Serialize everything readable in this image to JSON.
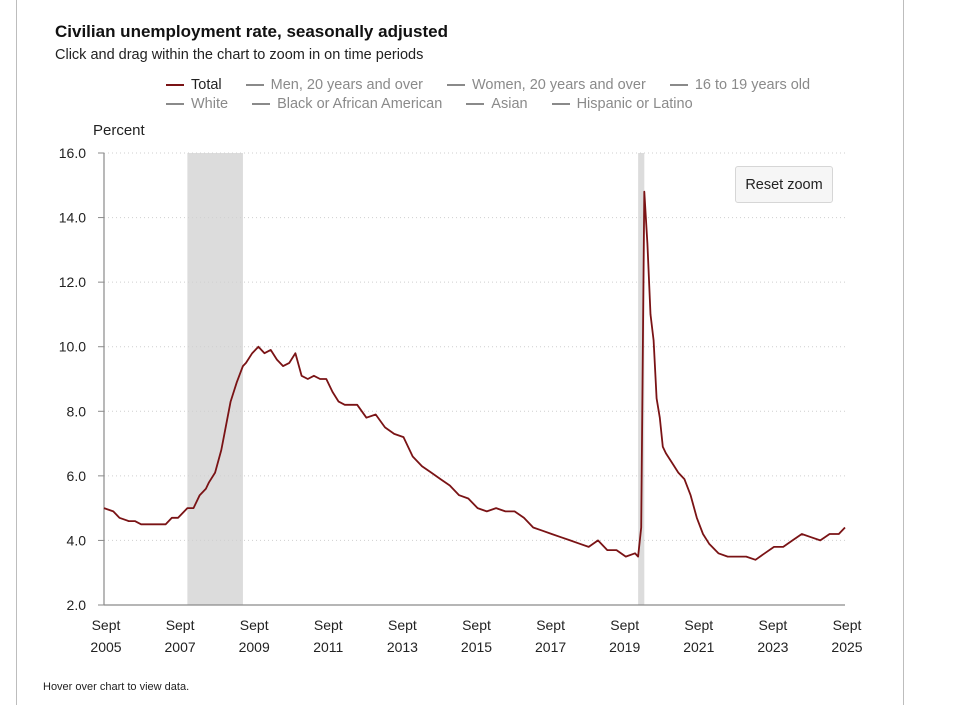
{
  "title": "Civilian unemployment rate, seasonally adjusted",
  "subtitle": "Click and drag within the chart to zoom in on time periods",
  "reset_label": "Reset zoom",
  "footer": "Hover over chart to view data.",
  "colors": {
    "total": "#7a1315",
    "inactive": "#8a8a8a",
    "recession": "#dcdcdc",
    "grid": "#cfcfcf",
    "axis": "#8a8a8a"
  },
  "legend": [
    [
      {
        "label": "Total",
        "active": true
      },
      {
        "label": "Men, 20 years and over",
        "active": false
      },
      {
        "label": "Women, 20 years and over",
        "active": false
      },
      {
        "label": "16 to 19 years old",
        "active": false
      }
    ],
    [
      {
        "label": "White",
        "active": false
      },
      {
        "label": "Black or African American",
        "active": false
      },
      {
        "label": "Asian",
        "active": false
      },
      {
        "label": "Hispanic or Latino",
        "active": false
      }
    ]
  ],
  "chart_data": {
    "type": "line",
    "title": "Civilian unemployment rate, seasonally adjusted",
    "ylabel": "Percent",
    "xlabel": "",
    "ylim": [
      2.0,
      16.0
    ],
    "yticks": [
      "2.0",
      "4.0",
      "6.0",
      "8.0",
      "10.0",
      "12.0",
      "14.0",
      "16.0"
    ],
    "xlim": [
      2005.667,
      2025.667
    ],
    "xticks": [
      {
        "month": "Sept",
        "year": "2005",
        "x": 2005.667
      },
      {
        "month": "Sept",
        "year": "2007",
        "x": 2007.667
      },
      {
        "month": "Sept",
        "year": "2009",
        "x": 2009.667
      },
      {
        "month": "Sept",
        "year": "2011",
        "x": 2011.667
      },
      {
        "month": "Sept",
        "year": "2013",
        "x": 2013.667
      },
      {
        "month": "Sept",
        "year": "2015",
        "x": 2015.667
      },
      {
        "month": "Sept",
        "year": "2017",
        "x": 2017.667
      },
      {
        "month": "Sept",
        "year": "2019",
        "x": 2019.667
      },
      {
        "month": "Sept",
        "year": "2021",
        "x": 2021.667
      },
      {
        "month": "Sept",
        "year": "2023",
        "x": 2023.667
      },
      {
        "month": "Sept",
        "year": "2025",
        "x": 2025.667
      }
    ],
    "recessions": [
      [
        2007.917,
        2009.417
      ],
      [
        2020.083,
        2020.25
      ]
    ],
    "series": [
      {
        "name": "Total",
        "x": [
          2005.667,
          2005.917,
          2006.083,
          2006.333,
          2006.5,
          2006.667,
          2006.917,
          2007.083,
          2007.333,
          2007.5,
          2007.667,
          2007.917,
          2008.083,
          2008.25,
          2008.417,
          2008.5,
          2008.667,
          2008.833,
          2008.917,
          2009.083,
          2009.25,
          2009.417,
          2009.5,
          2009.667,
          2009.833,
          2010.0,
          2010.167,
          2010.333,
          2010.5,
          2010.667,
          2010.833,
          2011.0,
          2011.167,
          2011.333,
          2011.5,
          2011.667,
          2011.833,
          2012.0,
          2012.167,
          2012.5,
          2012.75,
          2013.0,
          2013.25,
          2013.5,
          2013.75,
          2014.0,
          2014.25,
          2014.5,
          2014.75,
          2015.0,
          2015.25,
          2015.5,
          2015.75,
          2016.0,
          2016.25,
          2016.5,
          2016.75,
          2017.0,
          2017.25,
          2017.5,
          2017.75,
          2018.0,
          2018.25,
          2018.5,
          2018.75,
          2019.0,
          2019.25,
          2019.5,
          2019.75,
          2020.0,
          2020.083,
          2020.167,
          2020.25,
          2020.333,
          2020.417,
          2020.5,
          2020.583,
          2020.667,
          2020.75,
          2020.833,
          2021.0,
          2021.167,
          2021.333,
          2021.5,
          2021.667,
          2021.833,
          2022.0,
          2022.25,
          2022.5,
          2022.75,
          2023.0,
          2023.25,
          2023.5,
          2023.75,
          2024.0,
          2024.25,
          2024.5,
          2024.75,
          2025.0,
          2025.25,
          2025.5,
          2025.667
        ],
        "values": [
          5.0,
          4.9,
          4.7,
          4.6,
          4.6,
          4.5,
          4.5,
          4.5,
          4.5,
          4.7,
          4.7,
          5.0,
          5.0,
          5.4,
          5.6,
          5.8,
          6.1,
          6.8,
          7.3,
          8.3,
          8.9,
          9.4,
          9.5,
          9.8,
          10.0,
          9.8,
          9.9,
          9.6,
          9.4,
          9.5,
          9.8,
          9.1,
          9.0,
          9.1,
          9.0,
          9.0,
          8.6,
          8.3,
          8.2,
          8.2,
          7.8,
          7.9,
          7.5,
          7.3,
          7.2,
          6.6,
          6.3,
          6.1,
          5.9,
          5.7,
          5.4,
          5.3,
          5.0,
          4.9,
          5.0,
          4.9,
          4.9,
          4.7,
          4.4,
          4.3,
          4.2,
          4.1,
          4.0,
          3.9,
          3.8,
          4.0,
          3.7,
          3.7,
          3.5,
          3.6,
          3.5,
          4.4,
          14.8,
          13.2,
          11.0,
          10.2,
          8.4,
          7.8,
          6.9,
          6.7,
          6.4,
          6.1,
          5.9,
          5.4,
          4.7,
          4.2,
          3.9,
          3.6,
          3.5,
          3.5,
          3.5,
          3.4,
          3.6,
          3.8,
          3.8,
          4.0,
          4.2,
          4.1,
          4.0,
          4.2,
          4.2,
          4.4
        ]
      }
    ]
  }
}
